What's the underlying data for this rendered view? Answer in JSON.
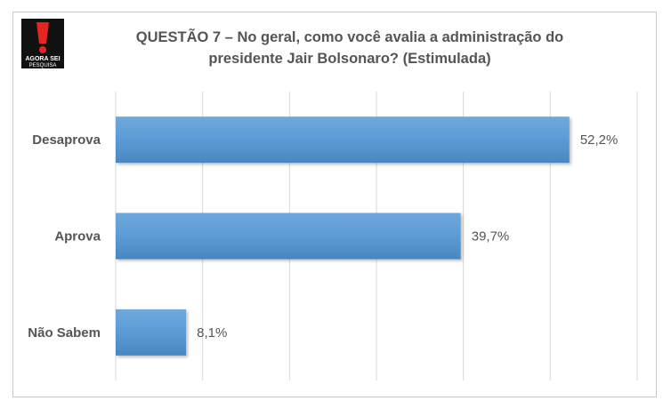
{
  "header": {
    "logo_text_top": "AGORA SEI",
    "logo_text_bottom": "PESQUISA",
    "title_line1": "QUESTÃO 7 – No geral, como você avalia a administração  do",
    "title_line2": "presidente Jair Bolsonaro? (Estimulada)"
  },
  "colors": {
    "bar": "#5b9bd5",
    "bar_dark": "#4a86c0",
    "grid": "#d9d9d9",
    "logo_red": "#e52521"
  },
  "chart_data": {
    "type": "bar",
    "orientation": "horizontal",
    "title": "QUESTÃO 7 – No geral, como você avalia a administração  do presidente Jair Bolsonaro? (Estimulada)",
    "categories": [
      "Desaprova",
      "Aprova",
      "Não Sabem"
    ],
    "values": [
      52.2,
      39.7,
      8.1
    ],
    "value_labels": [
      "52,2%",
      "39,7%",
      "8,1%"
    ],
    "xlim": [
      0,
      60
    ],
    "grid": true,
    "legend": "none"
  }
}
